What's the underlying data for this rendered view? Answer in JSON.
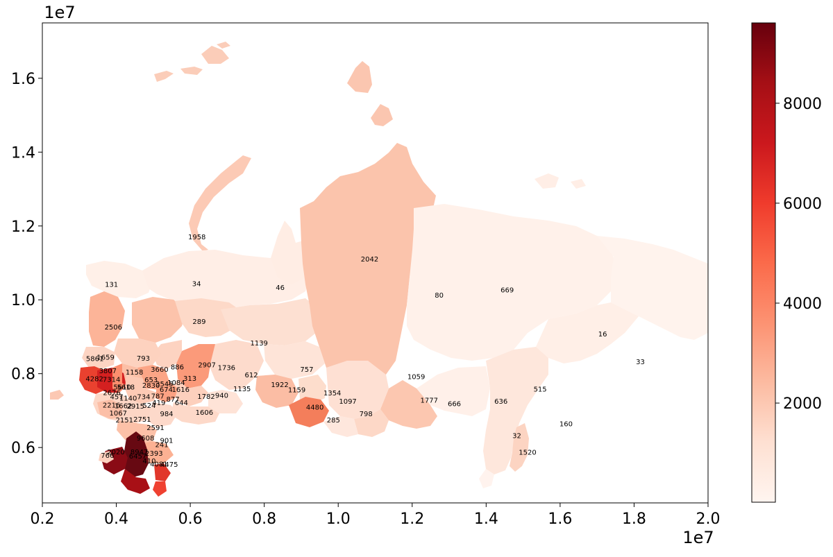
{
  "figure": {
    "x_axis": {
      "range": [
        0.2,
        2.0
      ],
      "ticks": [
        "0.2",
        "0.4",
        "0.6",
        "0.8",
        "1.0",
        "1.2",
        "1.4",
        "1.6",
        "1.8",
        "2.0"
      ],
      "offset_label": "1e7"
    },
    "y_axis": {
      "range": [
        0.45,
        1.75
      ],
      "ticks": [
        "0.6",
        "0.8",
        "1.0",
        "1.2",
        "1.4",
        "1.6"
      ],
      "offset_label": "1e7"
    },
    "colorbar": {
      "colormap": "Reds",
      "range": [
        16,
        9608
      ],
      "ticks": [
        "2000",
        "4000",
        "6000",
        "8000"
      ]
    },
    "colors": {
      "low": "#fff5f0",
      "high": "#67000d",
      "frame": "#000000"
    }
  },
  "chart_data": {
    "type": "choropleth",
    "description_units": "x/y in map projection units (x1e7)",
    "regions": [
      {
        "label": "1958",
        "x": 0.618,
        "y": 1.171
      },
      {
        "label": "2042",
        "x": 1.085,
        "y": 1.111
      },
      {
        "label": "131",
        "x": 0.387,
        "y": 1.043
      },
      {
        "label": "34",
        "x": 0.617,
        "y": 1.045
      },
      {
        "label": "46",
        "x": 0.843,
        "y": 1.034
      },
      {
        "label": "80",
        "x": 1.273,
        "y": 1.014
      },
      {
        "label": "669",
        "x": 1.457,
        "y": 1.028
      },
      {
        "label": "2506",
        "x": 0.392,
        "y": 0.927
      },
      {
        "label": "289",
        "x": 0.624,
        "y": 0.942
      },
      {
        "label": "16",
        "x": 1.715,
        "y": 0.908
      },
      {
        "label": "1139",
        "x": 0.786,
        "y": 0.884
      },
      {
        "label": "33",
        "x": 1.817,
        "y": 0.833
      },
      {
        "label": "5861",
        "x": 0.342,
        "y": 0.842
      },
      {
        "label": "1659",
        "x": 0.371,
        "y": 0.845
      },
      {
        "label": "793",
        "x": 0.473,
        "y": 0.843
      },
      {
        "label": "2907",
        "x": 0.645,
        "y": 0.825
      },
      {
        "label": "1736",
        "x": 0.698,
        "y": 0.817
      },
      {
        "label": "886",
        "x": 0.565,
        "y": 0.819
      },
      {
        "label": "3660",
        "x": 0.517,
        "y": 0.813
      },
      {
        "label": "757",
        "x": 0.915,
        "y": 0.813
      },
      {
        "label": "3807",
        "x": 0.377,
        "y": 0.809
      },
      {
        "label": "1158",
        "x": 0.449,
        "y": 0.805
      },
      {
        "label": "612",
        "x": 0.765,
        "y": 0.798
      },
      {
        "label": "1059",
        "x": 1.211,
        "y": 0.793
      },
      {
        "label": "4282",
        "x": 0.341,
        "y": 0.787
      },
      {
        "label": "7314",
        "x": 0.387,
        "y": 0.785
      },
      {
        "label": "653",
        "x": 0.494,
        "y": 0.784
      },
      {
        "label": "313",
        "x": 0.599,
        "y": 0.788
      },
      {
        "label": "3545",
        "x": 0.53,
        "y": 0.773
      },
      {
        "label": "1084",
        "x": 0.562,
        "y": 0.777
      },
      {
        "label": "1922",
        "x": 0.842,
        "y": 0.771
      },
      {
        "label": "5610",
        "x": 0.416,
        "y": 0.765
      },
      {
        "label": "5618",
        "x": 0.426,
        "y": 0.765
      },
      {
        "label": "2830",
        "x": 0.494,
        "y": 0.769
      },
      {
        "label": "674",
        "x": 0.535,
        "y": 0.758
      },
      {
        "label": "1616",
        "x": 0.574,
        "y": 0.758
      },
      {
        "label": "1135",
        "x": 0.74,
        "y": 0.76
      },
      {
        "label": "1159",
        "x": 0.888,
        "y": 0.757
      },
      {
        "label": "515",
        "x": 1.546,
        "y": 0.759
      },
      {
        "label": "2676",
        "x": 0.388,
        "y": 0.75
      },
      {
        "label": "1354",
        "x": 0.984,
        "y": 0.749
      },
      {
        "label": "457",
        "x": 0.401,
        "y": 0.738
      },
      {
        "label": "1140",
        "x": 0.432,
        "y": 0.735
      },
      {
        "label": "734",
        "x": 0.474,
        "y": 0.738
      },
      {
        "label": "787",
        "x": 0.512,
        "y": 0.74
      },
      {
        "label": "1782",
        "x": 0.643,
        "y": 0.739
      },
      {
        "label": "940",
        "x": 0.685,
        "y": 0.742
      },
      {
        "label": "877",
        "x": 0.553,
        "y": 0.732
      },
      {
        "label": "1777",
        "x": 1.246,
        "y": 0.729
      },
      {
        "label": "1097",
        "x": 1.026,
        "y": 0.726
      },
      {
        "label": "419",
        "x": 0.515,
        "y": 0.722
      },
      {
        "label": "644",
        "x": 0.576,
        "y": 0.722
      },
      {
        "label": "666",
        "x": 1.314,
        "y": 0.72
      },
      {
        "label": "636",
        "x": 1.44,
        "y": 0.726
      },
      {
        "label": "2216",
        "x": 0.387,
        "y": 0.716
      },
      {
        "label": "1662",
        "x": 0.419,
        "y": 0.714
      },
      {
        "label": "2915",
        "x": 0.452,
        "y": 0.713
      },
      {
        "label": "524",
        "x": 0.489,
        "y": 0.715
      },
      {
        "label": "4480",
        "x": 0.937,
        "y": 0.71
      },
      {
        "label": "1067",
        "x": 0.405,
        "y": 0.694
      },
      {
        "label": "984",
        "x": 0.536,
        "y": 0.692
      },
      {
        "label": "1606",
        "x": 0.638,
        "y": 0.696
      },
      {
        "label": "798",
        "x": 1.075,
        "y": 0.692
      },
      {
        "label": "2151",
        "x": 0.422,
        "y": 0.675
      },
      {
        "label": "2751",
        "x": 0.47,
        "y": 0.677
      },
      {
        "label": "285",
        "x": 0.987,
        "y": 0.675
      },
      {
        "label": "160",
        "x": 1.616,
        "y": 0.665
      },
      {
        "label": "2591",
        "x": 0.506,
        "y": 0.655
      },
      {
        "label": "32",
        "x": 1.483,
        "y": 0.633
      },
      {
        "label": "9608",
        "x": 0.479,
        "y": 0.627
      },
      {
        "label": "901",
        "x": 0.536,
        "y": 0.62
      },
      {
        "label": "241",
        "x": 0.523,
        "y": 0.609
      },
      {
        "label": "2020",
        "x": 0.399,
        "y": 0.589
      },
      {
        "label": "8947",
        "x": 0.462,
        "y": 0.589
      },
      {
        "label": "2393",
        "x": 0.502,
        "y": 0.585
      },
      {
        "label": "766",
        "x": 0.376,
        "y": 0.58
      },
      {
        "label": "1520",
        "x": 1.512,
        "y": 0.588
      },
      {
        "label": "6457",
        "x": 0.458,
        "y": 0.578
      },
      {
        "label": "410",
        "x": 0.489,
        "y": 0.565
      },
      {
        "label": "4081",
        "x": 0.515,
        "y": 0.556
      },
      {
        "label": "4475",
        "x": 0.543,
        "y": 0.555
      }
    ]
  }
}
